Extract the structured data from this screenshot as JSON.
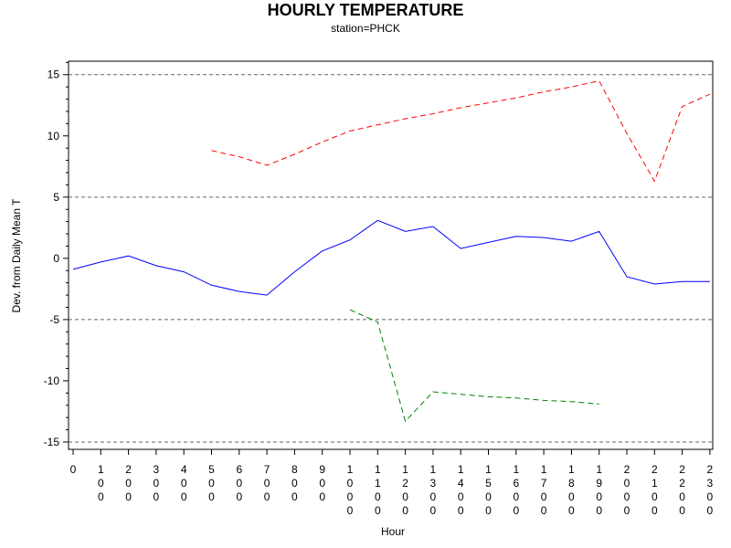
{
  "chart_data": {
    "type": "line",
    "title": "HOURLY TEMPERATURE",
    "subtitle": "station=PHCK",
    "xlabel": "Hour",
    "ylabel": "Dev. from Daily Mean T",
    "x_ticks": [
      "0",
      "100",
      "200",
      "300",
      "400",
      "500",
      "600",
      "700",
      "800",
      "900",
      "1000",
      "1100",
      "1200",
      "1300",
      "1400",
      "1500",
      "1600",
      "1700",
      "1800",
      "1900",
      "2000",
      "2100",
      "2200",
      "2300"
    ],
    "y_ticks": [
      -15,
      -10,
      -5,
      0,
      5,
      10,
      15
    ],
    "ylim": [
      -15.6,
      16.1
    ],
    "reference_lines": [
      -15,
      -5,
      5,
      15
    ],
    "grid": false,
    "legend": "none",
    "series": [
      {
        "style": "solid",
        "color": "#0000ff",
        "x": [
          0,
          100,
          200,
          300,
          400,
          500,
          600,
          700,
          800,
          900,
          1000,
          1100,
          1200,
          1300,
          1400,
          1500,
          1600,
          1700,
          1800,
          1900,
          2000,
          2100,
          2200,
          2300
        ],
        "y": [
          -0.9,
          -0.3,
          0.2,
          -0.6,
          -1.1,
          -2.2,
          -2.7,
          -3.0,
          -1.1,
          0.6,
          1.5,
          3.1,
          2.2,
          2.6,
          0.8,
          1.3,
          1.8,
          1.7,
          1.4,
          2.2,
          -1.5,
          -2.1,
          -1.9,
          -1.9
        ]
      },
      {
        "style": "dashed",
        "color": "#ff0000",
        "x": [
          500,
          600,
          700,
          800,
          900,
          1000,
          1100,
          1200,
          1300,
          1400,
          1500,
          1600,
          1700,
          1800,
          1900,
          2000,
          2100,
          2200,
          2300
        ],
        "y": [
          8.8,
          8.3,
          7.6,
          8.5,
          9.5,
          10.4,
          10.9,
          11.4,
          11.8,
          12.3,
          12.7,
          13.1,
          13.6,
          14.0,
          14.5,
          10.2,
          6.3,
          12.4,
          13.4
        ]
      },
      {
        "style": "dashed",
        "color": "#008000",
        "x": [
          1000,
          1100,
          1200,
          1300,
          1400,
          1500,
          1600,
          1700,
          1800,
          1900
        ],
        "y": [
          -4.2,
          -5.2,
          -13.3,
          -10.9,
          -11.1,
          -11.3,
          -11.4,
          -11.6,
          -11.7,
          -11.9
        ]
      }
    ]
  }
}
